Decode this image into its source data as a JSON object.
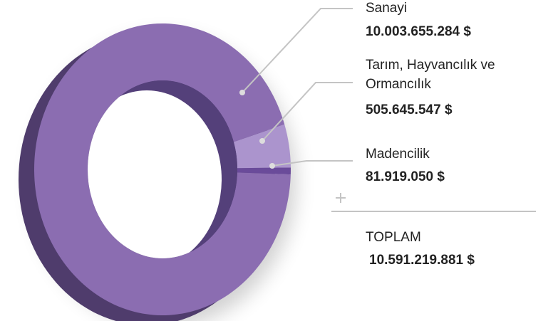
{
  "chart_data": {
    "type": "donut",
    "categories": [
      "Sanayi",
      "Tarım, Hayvancılık ve Ormancılık",
      "Madencilik"
    ],
    "values": [
      10003655284,
      505645547,
      81919050
    ],
    "value_labels": [
      "10.003.655.284 $",
      "505.645.547 $",
      "81.919.050 $"
    ],
    "colors": [
      "#8b6db1",
      "#ab94cd",
      "#6a4b9a"
    ],
    "total_label": "TOPLAM",
    "total_value_label": "10.591.219.881 $"
  }
}
